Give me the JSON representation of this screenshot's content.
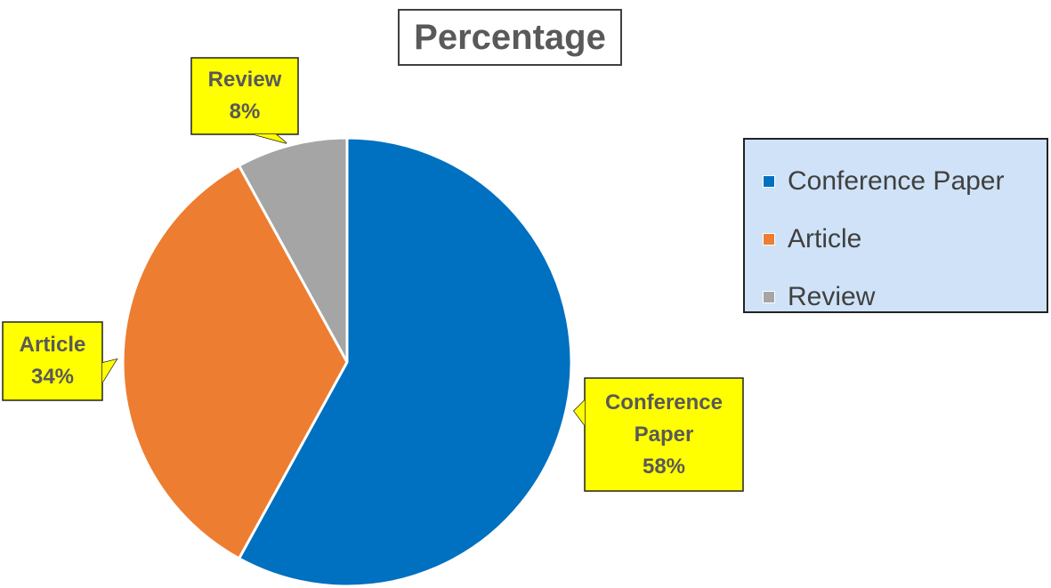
{
  "chart_data": {
    "type": "pie",
    "title": "Percentage",
    "categories": [
      "Conference Paper",
      "Article",
      "Review"
    ],
    "values": [
      58,
      34,
      8
    ],
    "value_labels": [
      "58%",
      "34%",
      "8%"
    ],
    "colors": [
      "#0070c0",
      "#ed7d31",
      "#a5a5a5"
    ],
    "legend": "right"
  }
}
